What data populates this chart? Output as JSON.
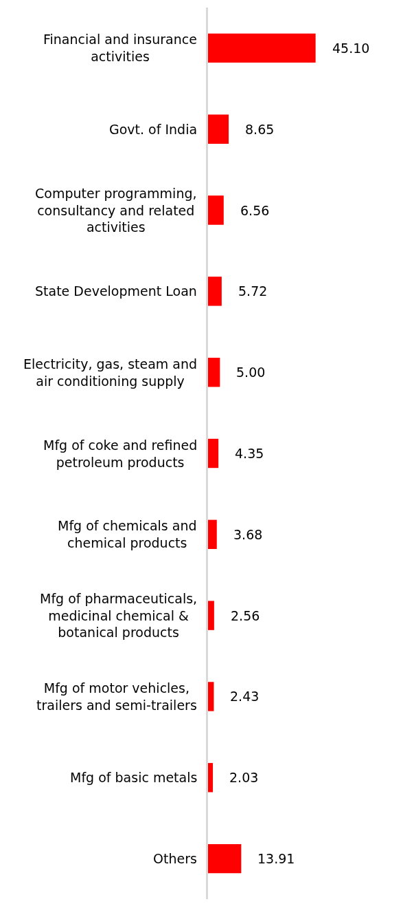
{
  "chart_data": {
    "type": "bar",
    "orientation": "horizontal",
    "color": "#ff0000",
    "categories": [
      "Financial and insurance\nactivities",
      "Govt. of India",
      "Computer programming,\nconsultancy and related\nactivities",
      "State Development Loan",
      "Electricity, gas, steam and\nair conditioning supply",
      "Mfg of coke and refined\npetroleum products",
      "Mfg of chemicals and\nchemical products",
      "Mfg of pharmaceuticals,\nmedicinal chemical &\nbotanical products",
      "Mfg of motor vehicles,\ntrailers and semi-trailers",
      "Mfg of basic metals",
      "Others"
    ],
    "values": [
      45.1,
      8.65,
      6.56,
      5.72,
      5.0,
      4.35,
      3.68,
      2.56,
      2.43,
      2.03,
      13.91
    ],
    "value_labels": [
      "45.10",
      "8.65",
      "6.56",
      "5.72",
      "5.00",
      "4.35",
      "3.68",
      "2.56",
      "2.43",
      "2.03",
      "13.91"
    ]
  }
}
